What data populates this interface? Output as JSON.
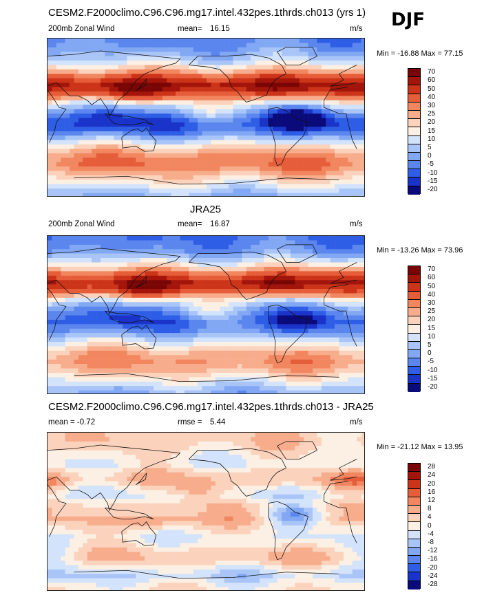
{
  "season": "DJF",
  "colors": {
    "diverging": [
      "#0a0a7a",
      "#1a33c8",
      "#2f5ee6",
      "#5a86ee",
      "#82a8f4",
      "#a9c5f8",
      "#d2e3fb",
      "#fbf0e3",
      "#fbd2bc",
      "#f7ad8c",
      "#f1865f",
      "#e65d3a",
      "#cc3419",
      "#a3140a",
      "#7a0505"
    ]
  },
  "chart_data": [
    {
      "type": "heatmap",
      "title": "CESM2.F2000climo.C96.C96.mg17.intel.432pes.1thrds.ch013 (yrs 1)",
      "left_label": "200mb Zonal Wind",
      "mean_label": "mean=",
      "mean_value": "16.15",
      "units": "m/s",
      "min_label": "Min = -16.88 Max =  77.15",
      "levels": [
        "70",
        "60",
        "50",
        "40",
        "30",
        "25",
        "20",
        "15",
        "10",
        "5",
        "0",
        "-5",
        "-10",
        "-15",
        "-20"
      ],
      "zonal_profile": [
        -8,
        -5,
        0,
        8,
        20,
        38,
        55,
        35,
        12,
        -2,
        -12,
        -15,
        -6,
        8,
        20,
        28,
        30,
        22,
        14,
        6,
        -2
      ],
      "anomalies": [
        {
          "lon": 130,
          "lat": 33,
          "amp": 22
        },
        {
          "lon": -70,
          "lat": 38,
          "amp": 18
        },
        {
          "lon": -150,
          "lat": 5,
          "amp": 12
        },
        {
          "lon": -45,
          "lat": 0,
          "amp": -18
        },
        {
          "lon": 100,
          "lat": 0,
          "amp": -8
        }
      ]
    },
    {
      "type": "heatmap",
      "title": "JRA25",
      "left_label": "200mb Zonal Wind",
      "mean_label": "mean=",
      "mean_value": "16.87",
      "units": "m/s",
      "min_label": "Min = -13.26 Max =  73.96",
      "levels": [
        "70",
        "60",
        "50",
        "40",
        "30",
        "25",
        "20",
        "15",
        "10",
        "5",
        "0",
        "-5",
        "-10",
        "-15",
        "-20"
      ],
      "zonal_profile": [
        -10,
        -8,
        -4,
        6,
        18,
        35,
        52,
        34,
        10,
        -3,
        -10,
        -12,
        -5,
        6,
        16,
        24,
        26,
        20,
        12,
        4,
        -2
      ],
      "anomalies": [
        {
          "lon": 140,
          "lat": 33,
          "amp": 22
        },
        {
          "lon": -65,
          "lat": 38,
          "amp": 16
        },
        {
          "lon": -150,
          "lat": 5,
          "amp": 14
        },
        {
          "lon": -45,
          "lat": -5,
          "amp": -10
        },
        {
          "lon": 110,
          "lat": -2,
          "amp": -6
        }
      ]
    },
    {
      "type": "heatmap",
      "title": "CESM2.F2000climo.C96.C96.mg17.intel.432pes.1thrds.ch013 - JRA25",
      "left_label": "mean =  -0.72",
      "mean_label": "rmse =",
      "mean_value": "5.44",
      "units": "m/s",
      "min_label": "Min = -21.12 Max =  13.95",
      "levels": [
        "28",
        "24",
        "20",
        "16",
        "12",
        "8",
        "4",
        "0",
        "-4",
        "-8",
        "-12",
        "-16",
        "-20",
        "-24",
        "-28"
      ],
      "zonal_profile": [
        2,
        3,
        1,
        -2,
        -4,
        2,
        4,
        -2,
        -5,
        1,
        2,
        4,
        0,
        -4,
        -2,
        3,
        4,
        -3,
        -8,
        -3,
        0
      ],
      "anomalies": [
        {
          "lon": -50,
          "lat": -5,
          "amp": -16
        },
        {
          "lon": -160,
          "lat": 25,
          "amp": 8
        },
        {
          "lon": 20,
          "lat": 35,
          "amp": 7
        },
        {
          "lon": 160,
          "lat": -10,
          "amp": 6
        },
        {
          "lon": 40,
          "lat": -50,
          "amp": -5
        }
      ]
    }
  ]
}
